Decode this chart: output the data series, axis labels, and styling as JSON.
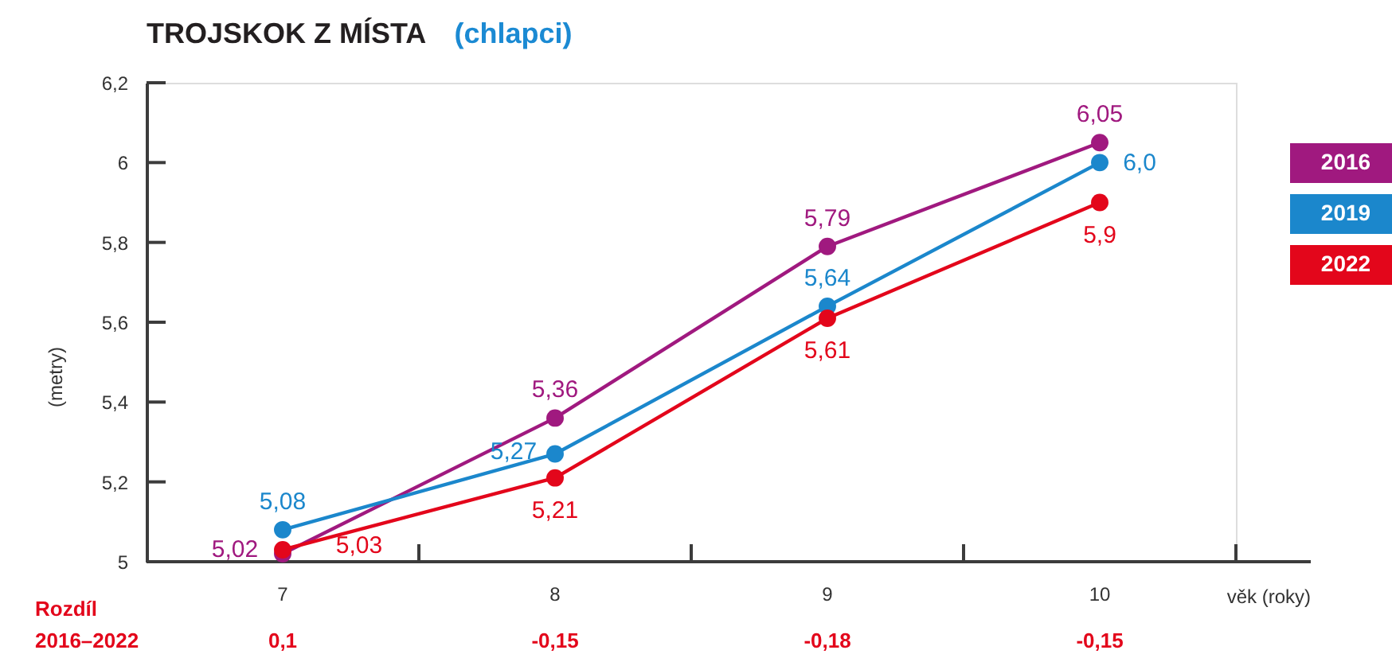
{
  "chart_data": {
    "type": "line",
    "title": "TROJSKOK Z MÍSTA",
    "subtitle": "(chlapci)",
    "xlabel": "věk (roky)",
    "ylabel": "(metry)",
    "categories": [
      "7",
      "8",
      "9",
      "10"
    ],
    "series": [
      {
        "name": "2016",
        "color": "#a0197f",
        "values": [
          5.02,
          5.36,
          5.79,
          6.05
        ],
        "value_labels": [
          "5,02",
          "5,36",
          "5,79",
          "6,05"
        ]
      },
      {
        "name": "2019",
        "color": "#1b87cc",
        "values": [
          5.08,
          5.27,
          5.64,
          6.0
        ],
        "value_labels": [
          "5,08",
          "5,27",
          "5,64",
          "6,0"
        ]
      },
      {
        "name": "2022",
        "color": "#e3061b",
        "values": [
          5.03,
          5.21,
          5.61,
          5.9
        ],
        "value_labels": [
          "5,03",
          "5,21",
          "5,61",
          "5,9"
        ]
      }
    ],
    "ylim": [
      5,
      6.2
    ],
    "yticks": [
      5,
      {
        "value": 5.2,
        "label": "5,2"
      },
      {
        "value": 5.4,
        "label": "5,4"
      },
      {
        "value": 5.6,
        "label": "5,6"
      },
      {
        "value": 5.8,
        "label": "5,8"
      },
      6,
      {
        "value": 6.2,
        "label": "6,2"
      }
    ],
    "legend": "right",
    "marker": "circle",
    "line_style": "solid",
    "annotations": [
      "Rozdíl\n2016–2022",
      "0,1",
      "-0,15",
      "-0,18",
      "-0,15"
    ]
  }
}
